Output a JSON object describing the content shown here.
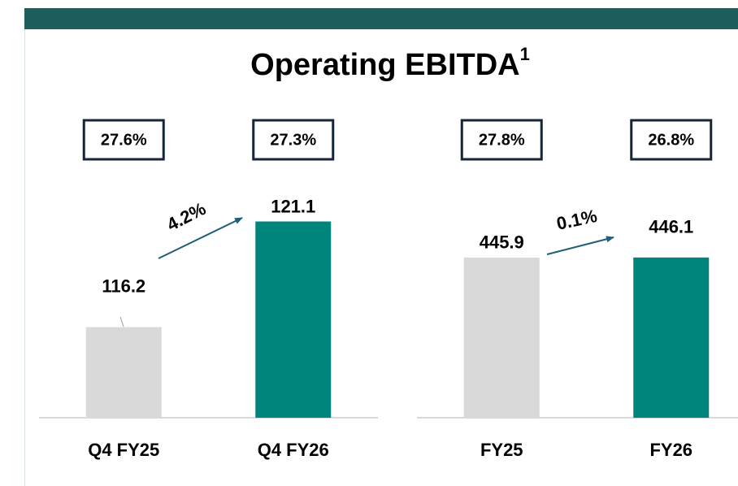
{
  "title": "Operating EBITDA",
  "title_footnote": "1",
  "chart_data": [
    {
      "type": "bar",
      "categories": [
        "Q4 FY25",
        "Q4 FY26"
      ],
      "values": [
        116.2,
        121.1
      ],
      "colors": [
        "#d9d9d9",
        "#00857c"
      ],
      "ylim": [
        112,
        125
      ],
      "margins": [
        "27.6%",
        "27.3%"
      ],
      "growth": "4.2%"
    },
    {
      "type": "bar",
      "categories": [
        "FY25",
        "FY26"
      ],
      "values": [
        445.9,
        446.1
      ],
      "colors": [
        "#d9d9d9",
        "#00857c"
      ],
      "ylim": [
        0,
        500
      ],
      "margins": [
        "27.8%",
        "26.8%"
      ],
      "growth": "0.1%"
    }
  ]
}
